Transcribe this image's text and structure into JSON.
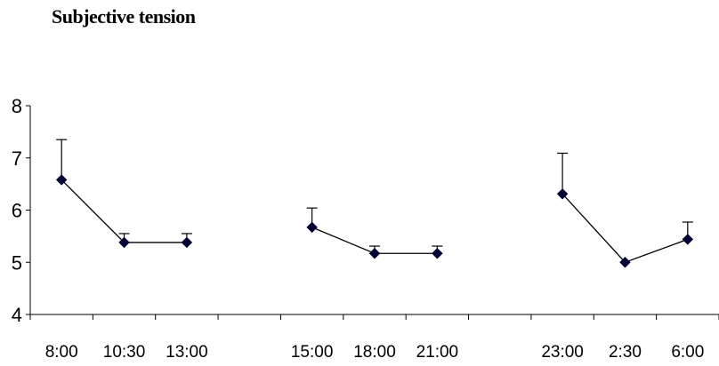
{
  "chart_data": {
    "type": "line",
    "title": "Subjective tension",
    "xlabel": "",
    "ylabel": "",
    "ylim": [
      4,
      8
    ],
    "yticks": [
      4,
      5,
      6,
      7,
      8
    ],
    "grid": false,
    "legend": "none",
    "categories": [
      "8:00",
      "10:30",
      "13:00",
      "",
      "15:00",
      "18:00",
      "21:00",
      "",
      "23:00",
      "2:30",
      "6:00"
    ],
    "series": [
      {
        "values": [
          6.58,
          5.38,
          5.38,
          null,
          5.67,
          5.17,
          5.17,
          null,
          6.31,
          5.0,
          5.44
        ],
        "error_upper": [
          0.77,
          0.17,
          0.17,
          null,
          0.37,
          0.14,
          0.14,
          null,
          0.78,
          0.0,
          0.33
        ],
        "color": "#000033",
        "marker": "diamond"
      }
    ]
  }
}
